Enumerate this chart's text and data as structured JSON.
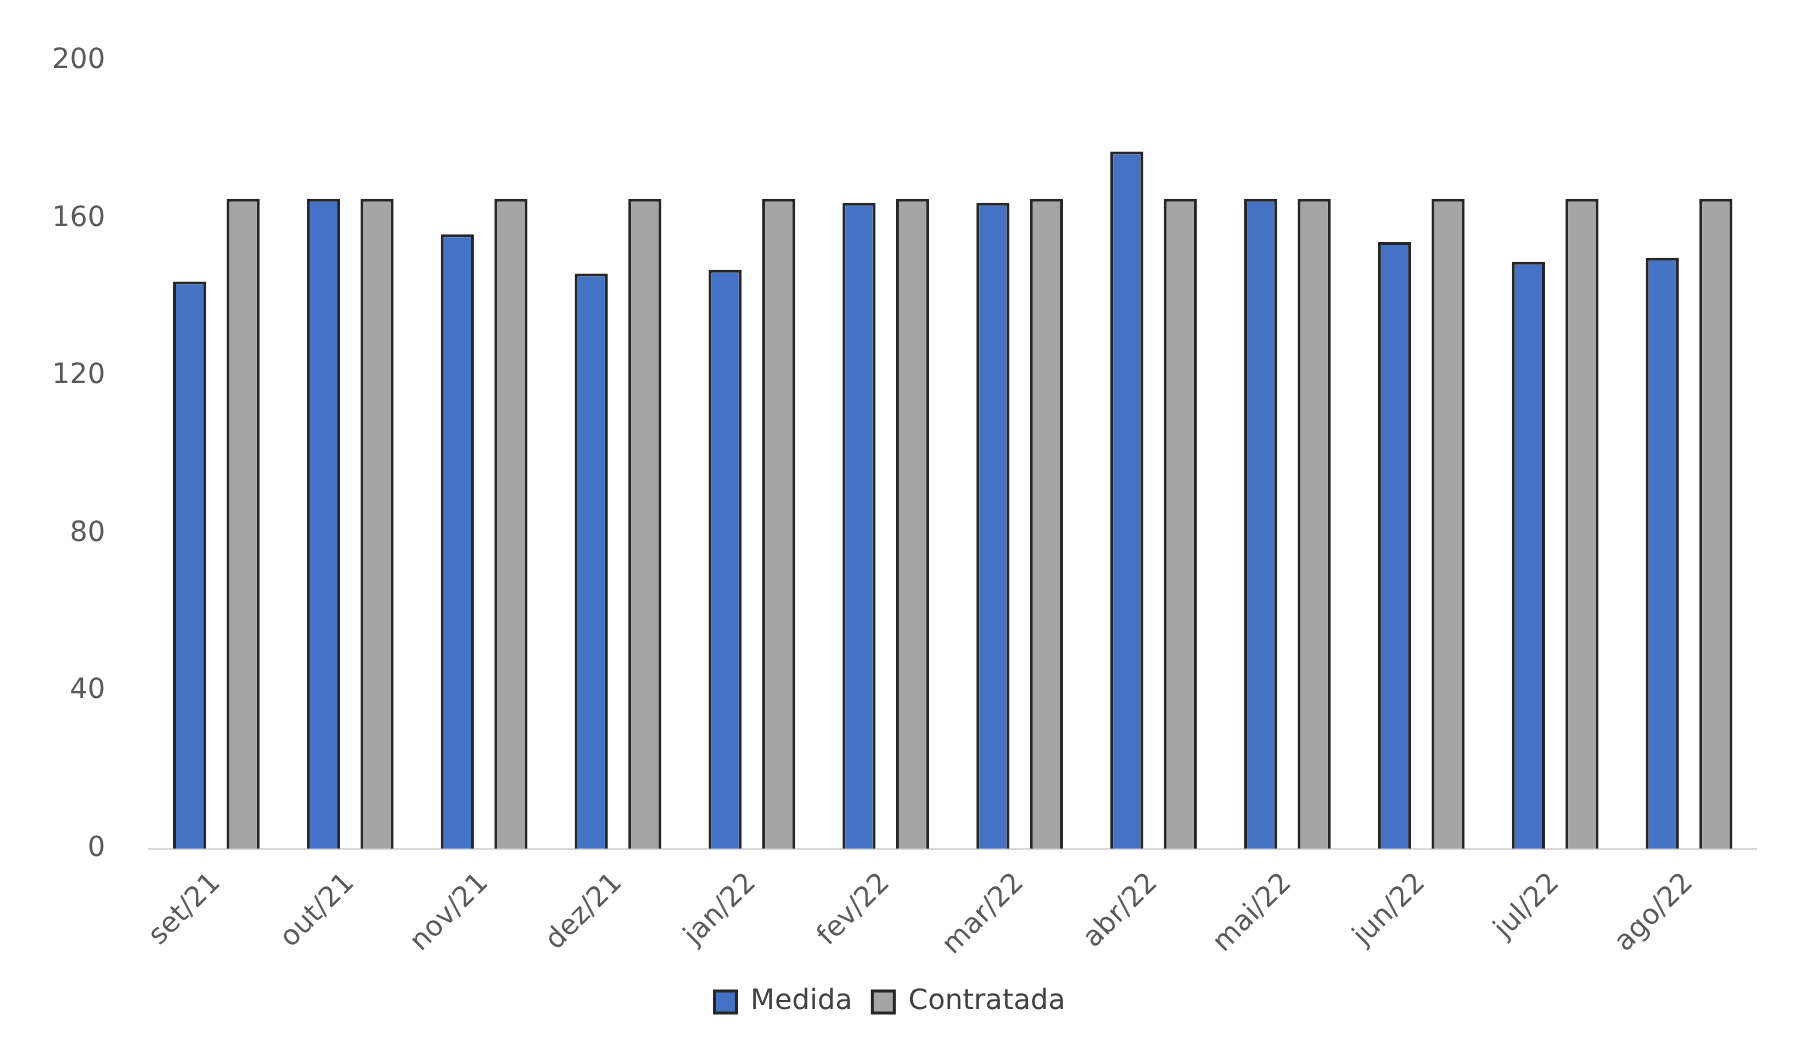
{
  "chart_data": {
    "type": "bar",
    "categories": [
      "set/21",
      "out/21",
      "nov/21",
      "dez/21",
      "jan/22",
      "fev/22",
      "mar/22",
      "abr/22",
      "mai/22",
      "jun/22",
      "jul/22",
      "ago/22"
    ],
    "series": [
      {
        "name": "Medida",
        "color": "#4472c4",
        "values": [
          144,
          165,
          156,
          146,
          147,
          164,
          164,
          177,
          165,
          154,
          149,
          150
        ]
      },
      {
        "name": "Contratada",
        "color": "#a5a5a5",
        "values": [
          165,
          165,
          165,
          165,
          165,
          165,
          165,
          165,
          165,
          165,
          165,
          165
        ]
      }
    ],
    "ylim": [
      0,
      200
    ],
    "yticks": [
      0,
      40,
      80,
      120,
      160,
      200
    ],
    "grid": false,
    "legend": "bottom"
  }
}
